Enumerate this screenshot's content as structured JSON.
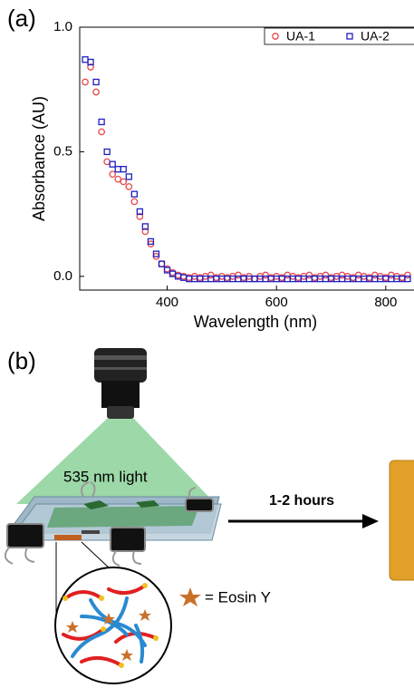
{
  "chart_data": {
    "type": "scatter",
    "panel_label": "(a)",
    "x_label": "Wavelength (nm)",
    "y_label": "Absorbance (AU)",
    "x": [
      250,
      260,
      270,
      280,
      290,
      300,
      310,
      320,
      330,
      340,
      350,
      360,
      370,
      380,
      390,
      400,
      410,
      420,
      430,
      440,
      450,
      460,
      470,
      480,
      490,
      500,
      510,
      520,
      530,
      540,
      550,
      560,
      570,
      580,
      590,
      600,
      610,
      620,
      630,
      640,
      650,
      660,
      670,
      680,
      690,
      700,
      710,
      720,
      730,
      740,
      750,
      760,
      770,
      780,
      790,
      800,
      810,
      820,
      830,
      840
    ],
    "series": [
      {
        "name": "UA-1",
        "color": "#e8474a",
        "marker": "circle",
        "values": [
          0.78,
          0.84,
          0.74,
          0.58,
          0.46,
          0.41,
          0.39,
          0.38,
          0.36,
          0.3,
          0.24,
          0.18,
          0.13,
          0.08,
          0.05,
          0.03,
          0.015,
          0.005,
          0.0,
          -0.005,
          0.0,
          -0.005,
          0.0,
          0.005,
          -0.005,
          0.0,
          -0.005,
          0.0,
          0.005,
          -0.005,
          0.0,
          -0.01,
          0.0,
          0.005,
          -0.005,
          0.0,
          -0.005,
          0.005,
          0.0,
          -0.005,
          0.0,
          0.005,
          -0.005,
          0.0,
          0.005,
          -0.005,
          0.0,
          0.005,
          0.0,
          -0.005,
          0.005,
          0.0,
          -0.005,
          0.005,
          0.0,
          -0.005,
          0.005,
          0.0,
          -0.005,
          0.005
        ]
      },
      {
        "name": "UA-2",
        "color": "#2020c0",
        "marker": "square",
        "values": [
          0.87,
          0.86,
          0.78,
          0.62,
          0.5,
          0.45,
          0.43,
          0.43,
          0.4,
          0.33,
          0.26,
          0.2,
          0.14,
          0.09,
          0.05,
          0.025,
          0.01,
          0.0,
          -0.005,
          -0.01,
          -0.01,
          -0.01,
          -0.01,
          -0.01,
          -0.01,
          -0.01,
          -0.01,
          -0.01,
          -0.01,
          -0.01,
          -0.01,
          -0.01,
          -0.01,
          -0.01,
          -0.01,
          -0.01,
          -0.01,
          -0.01,
          -0.01,
          -0.01,
          -0.01,
          -0.01,
          -0.01,
          -0.01,
          -0.01,
          -0.01,
          -0.01,
          -0.01,
          -0.01,
          -0.01,
          -0.01,
          -0.01,
          -0.01,
          -0.01,
          -0.01,
          -0.01,
          -0.01,
          -0.01,
          -0.01,
          -0.01
        ]
      }
    ],
    "xlim": [
      240,
      850
    ],
    "ylim": [
      -0.055,
      1.0
    ],
    "xticks": [
      400,
      600,
      800
    ],
    "yticks": [
      {
        "value": 0,
        "label": "0.0"
      },
      {
        "value": 0.5,
        "label": "0.5"
      },
      {
        "value": 1,
        "label": "1.0"
      }
    ],
    "legend": "top-right"
  },
  "panel_b": {
    "label": "(b)",
    "light_label": "535 nm light",
    "arrow_label": "1-2 hours",
    "legend_label": "= Eosin Y"
  }
}
